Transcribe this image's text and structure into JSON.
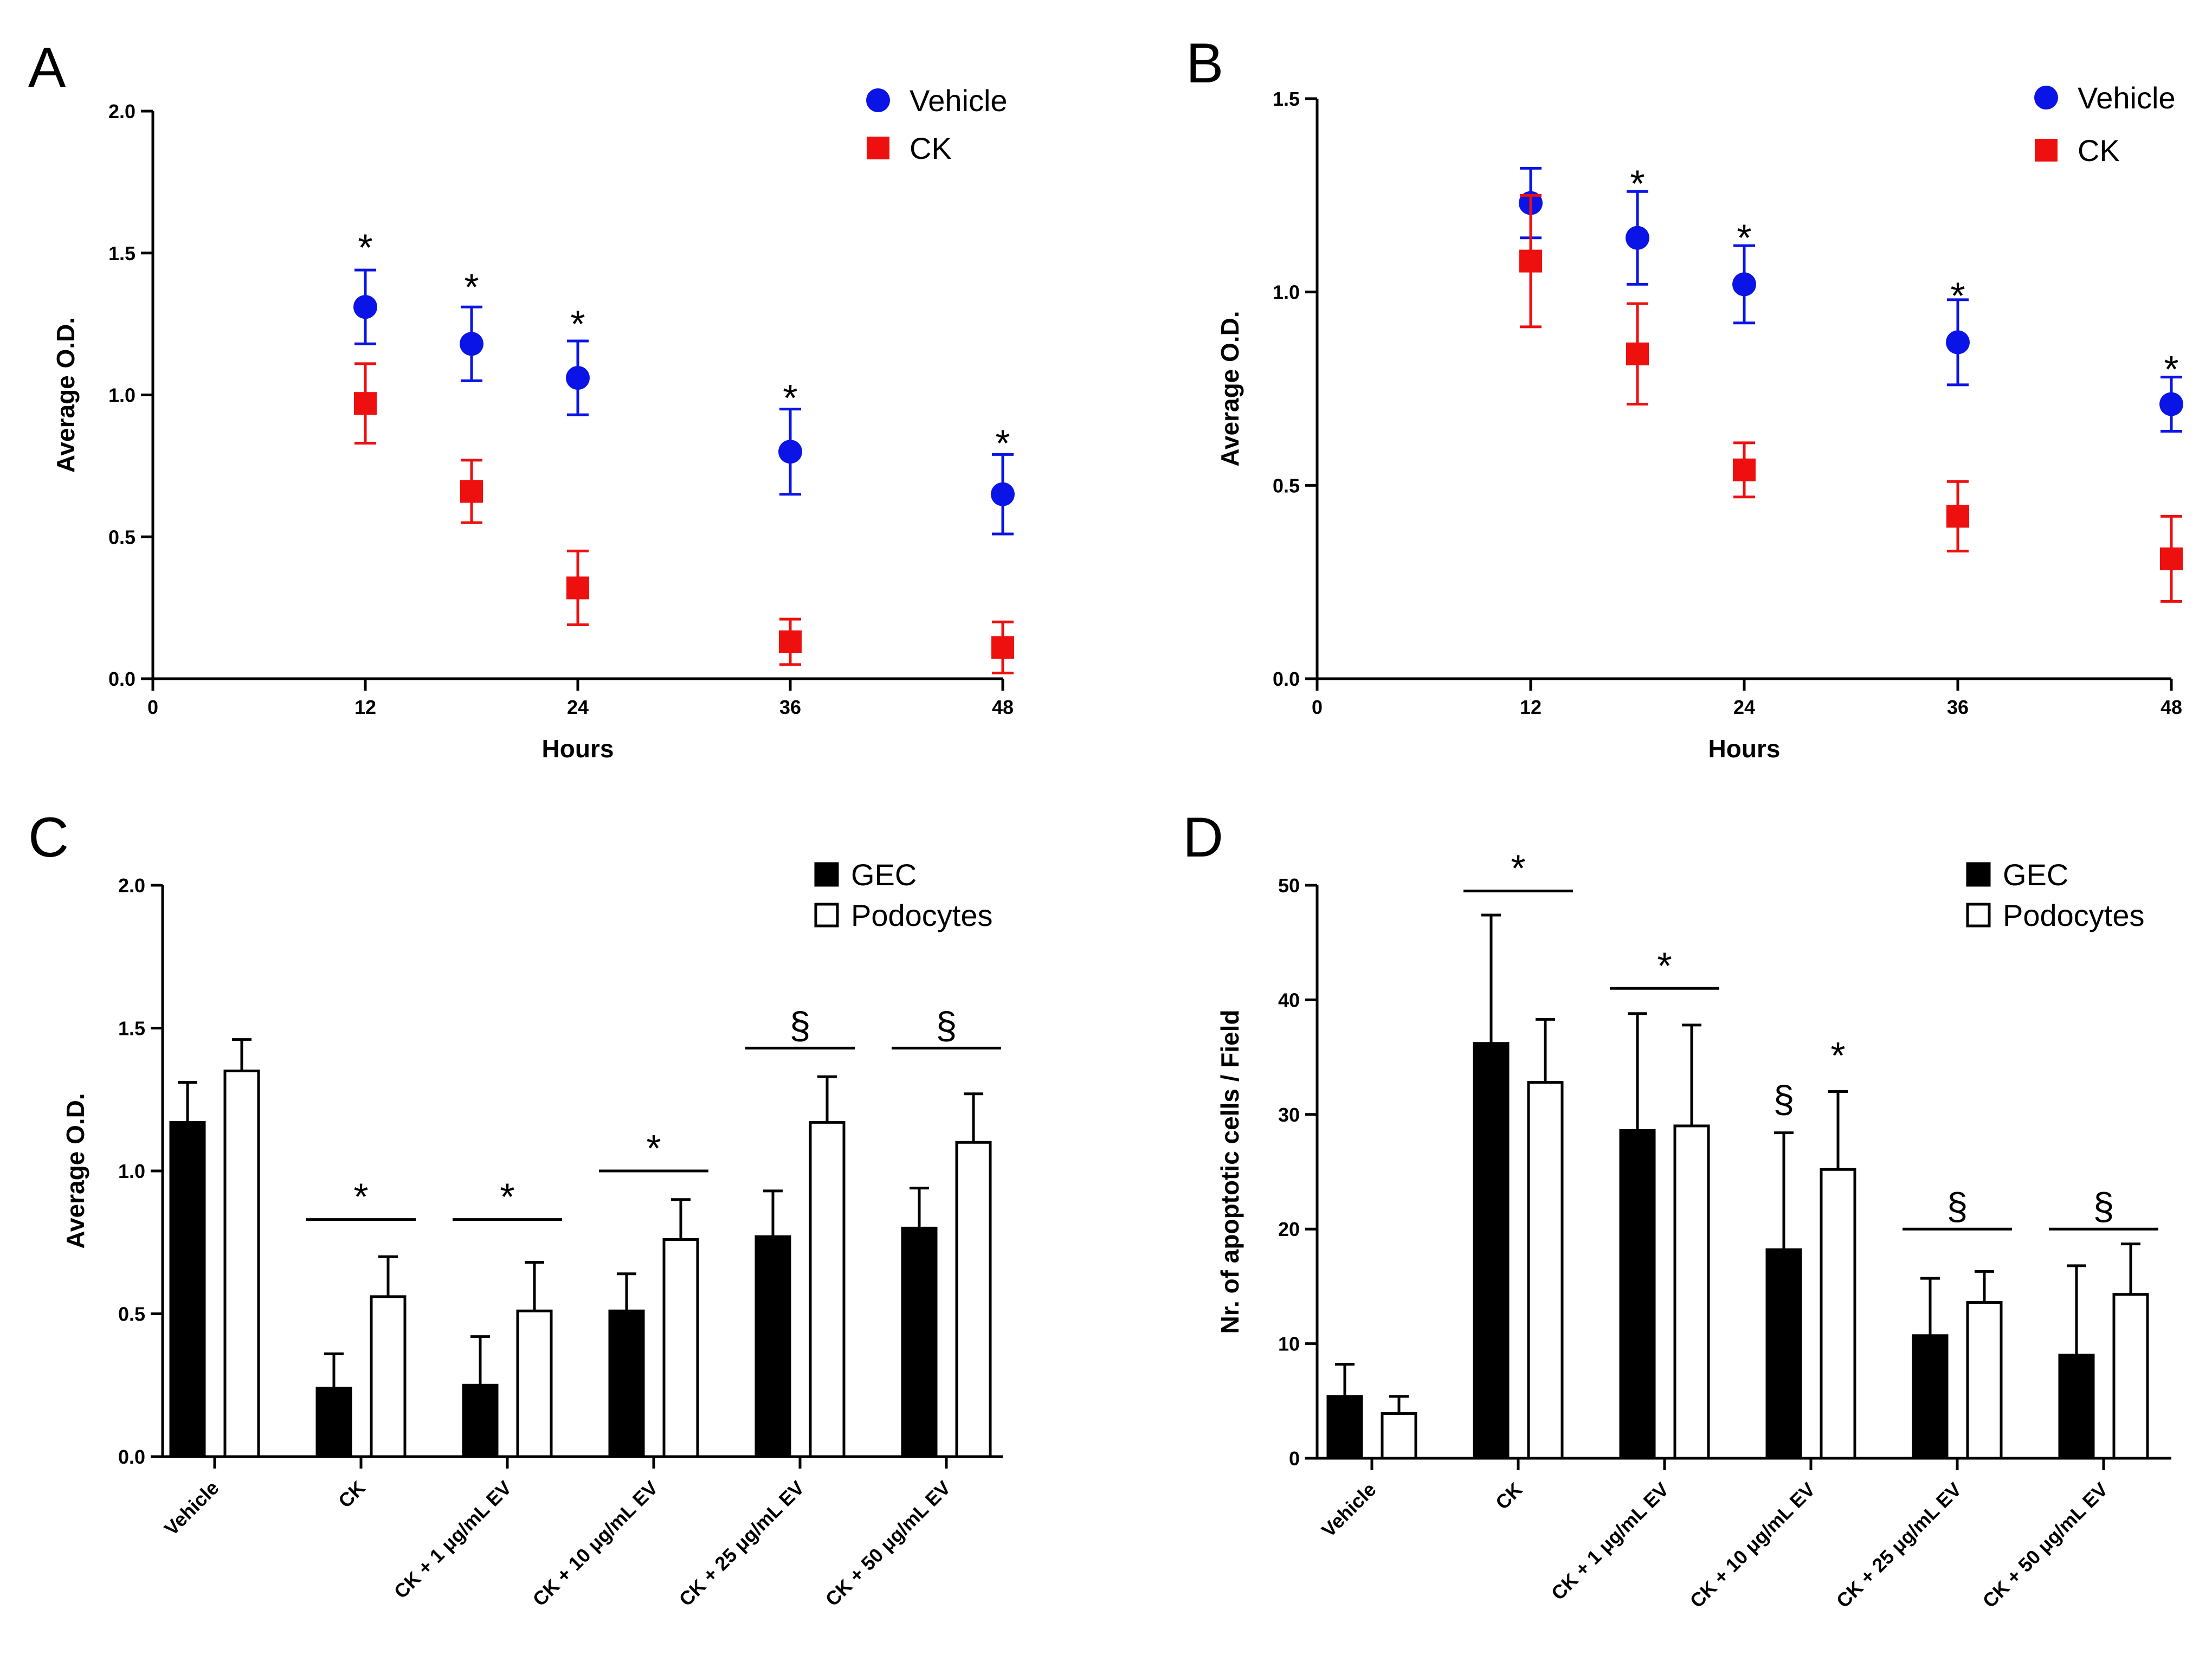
{
  "colors": {
    "vehicle": "#0a14e6",
    "ck": "#ee0f0f",
    "gec": "#000000",
    "podocytes": "#ffffff",
    "axis": "#000000"
  },
  "chart_data": [
    {
      "panel": "A",
      "type": "scatter",
      "xlabel": "Hours",
      "ylabel": "Average O.D.",
      "xlim": [
        0,
        48
      ],
      "ylim": [
        0,
        2
      ],
      "xticks": [
        0,
        12,
        24,
        36,
        48
      ],
      "yticks": [
        0,
        0.5,
        1,
        1.5,
        2
      ],
      "ytick_labels": [
        "0.0",
        "0.5",
        "1.0",
        "1.5",
        "2.0"
      ],
      "legend": [
        "Vehicle",
        "CK"
      ],
      "series": [
        {
          "name": "Vehicle",
          "marker": "circle",
          "x": [
            12,
            18,
            24,
            36,
            48
          ],
          "values": [
            1.31,
            1.18,
            1.06,
            0.8,
            0.65
          ],
          "err": [
            0.13,
            0.13,
            0.13,
            0.15,
            0.14
          ]
        },
        {
          "name": "CK",
          "marker": "square",
          "x": [
            12,
            18,
            24,
            36,
            48
          ],
          "values": [
            0.97,
            0.66,
            0.32,
            0.13,
            0.11
          ],
          "err": [
            0.14,
            0.11,
            0.13,
            0.08,
            0.09
          ]
        }
      ],
      "annotations": [
        {
          "x": 12,
          "y": 1.56,
          "text": "*"
        },
        {
          "x": 18,
          "y": 1.42,
          "text": "*"
        },
        {
          "x": 24,
          "y": 1.29,
          "text": "*"
        },
        {
          "x": 36,
          "y": 1.03,
          "text": "*"
        },
        {
          "x": 48,
          "y": 0.87,
          "text": "*"
        }
      ]
    },
    {
      "panel": "B",
      "type": "scatter",
      "xlabel": "Hours",
      "ylabel": "Average O.D.",
      "xlim": [
        0,
        48
      ],
      "ylim": [
        0,
        1.5
      ],
      "xticks": [
        0,
        12,
        24,
        36,
        48
      ],
      "yticks": [
        0,
        0.5,
        1,
        1.5
      ],
      "ytick_labels": [
        "0.0",
        "0.5",
        "1.0",
        "1.5"
      ],
      "legend": [
        "Vehicle",
        "CK"
      ],
      "series": [
        {
          "name": "Vehicle",
          "marker": "circle",
          "x": [
            12,
            18,
            24,
            36,
            48
          ],
          "values": [
            1.23,
            1.14,
            1.02,
            0.87,
            0.71
          ],
          "err": [
            0.09,
            0.12,
            0.1,
            0.11,
            0.07
          ]
        },
        {
          "name": "CK",
          "marker": "square",
          "x": [
            12,
            18,
            24,
            36,
            48
          ],
          "values": [
            1.08,
            0.84,
            0.54,
            0.42,
            0.31
          ],
          "err": [
            0.17,
            0.13,
            0.07,
            0.09,
            0.11
          ]
        }
      ],
      "annotations": [
        {
          "x": 18,
          "y": 1.31,
          "text": "*"
        },
        {
          "x": 24,
          "y": 1.17,
          "text": "*"
        },
        {
          "x": 36,
          "y": 1.02,
          "text": "*"
        },
        {
          "x": 48,
          "y": 0.83,
          "text": "*"
        }
      ]
    },
    {
      "panel": "C",
      "type": "bar",
      "xlabel": "",
      "ylabel": "Average O.D.",
      "ylim": [
        0,
        2
      ],
      "yticks": [
        0,
        0.5,
        1,
        1.5,
        2
      ],
      "ytick_labels": [
        "0.0",
        "0.5",
        "1.0",
        "1.5",
        "2.0"
      ],
      "categories": [
        "Vehicle",
        "CK",
        "CK + 1 μg/mL EV",
        "CK + 10 μg/mL EV",
        "CK + 25 μg/mL EV",
        "CK + 50 μg/mL EV"
      ],
      "legend": [
        "GEC",
        "Podocytes"
      ],
      "series": [
        {
          "name": "GEC",
          "values": [
            1.17,
            0.24,
            0.25,
            0.51,
            0.77,
            0.8
          ],
          "err": [
            0.14,
            0.12,
            0.17,
            0.13,
            0.16,
            0.14
          ]
        },
        {
          "name": "Podocytes",
          "values": [
            1.35,
            0.56,
            0.51,
            0.76,
            1.17,
            1.1
          ],
          "err": [
            0.11,
            0.14,
            0.17,
            0.14,
            0.16,
            0.17
          ]
        }
      ],
      "annotations": [
        {
          "category": 1,
          "y": 0.83,
          "text": "*"
        },
        {
          "category": 2,
          "y": 0.83,
          "text": "*"
        },
        {
          "category": 3,
          "y": 1.0,
          "text": "*"
        },
        {
          "category": 4,
          "y": 1.43,
          "text": "§"
        },
        {
          "category": 5,
          "y": 1.43,
          "text": "§"
        }
      ]
    },
    {
      "panel": "D",
      "type": "bar",
      "xlabel": "",
      "ylabel": "Nr. of apoptotic cells / Field",
      "ylim": [
        0,
        50
      ],
      "yticks": [
        0,
        10,
        20,
        30,
        40,
        50
      ],
      "ytick_labels": [
        "0",
        "10",
        "20",
        "30",
        "40",
        "50"
      ],
      "categories": [
        "Vehicle",
        "CK",
        "CK + 1 μg/mL EV",
        "CK + 10 μg/mL EV",
        "CK + 25 μg/mL EV",
        "CK + 50 μg/mL EV"
      ],
      "legend": [
        "GEC",
        "Podocytes"
      ],
      "series": [
        {
          "name": "GEC",
          "values": [
            5.4,
            36.2,
            28.6,
            18.2,
            10.7,
            9.0
          ],
          "err": [
            2.8,
            11.2,
            10.2,
            10.2,
            5.0,
            7.8
          ]
        },
        {
          "name": "Podocytes",
          "values": [
            3.9,
            32.8,
            29.0,
            25.2,
            13.6,
            14.3
          ],
          "err": [
            1.5,
            5.5,
            8.8,
            6.8,
            2.7,
            4.4
          ]
        }
      ],
      "annotations": [
        {
          "category": 1,
          "y": 49.5,
          "bar": true,
          "text": "*"
        },
        {
          "category": 2,
          "y": 41.0,
          "bar": true,
          "text": "*"
        },
        {
          "category": 3,
          "y": 30.2,
          "bar": false,
          "series": 0,
          "text": "§"
        },
        {
          "category": 3,
          "y": 34.0,
          "bar": false,
          "series": 1,
          "text": "*"
        },
        {
          "category": 4,
          "y": 20.0,
          "bar": true,
          "text": "§"
        },
        {
          "category": 5,
          "y": 20.0,
          "bar": true,
          "text": "§"
        }
      ]
    }
  ]
}
